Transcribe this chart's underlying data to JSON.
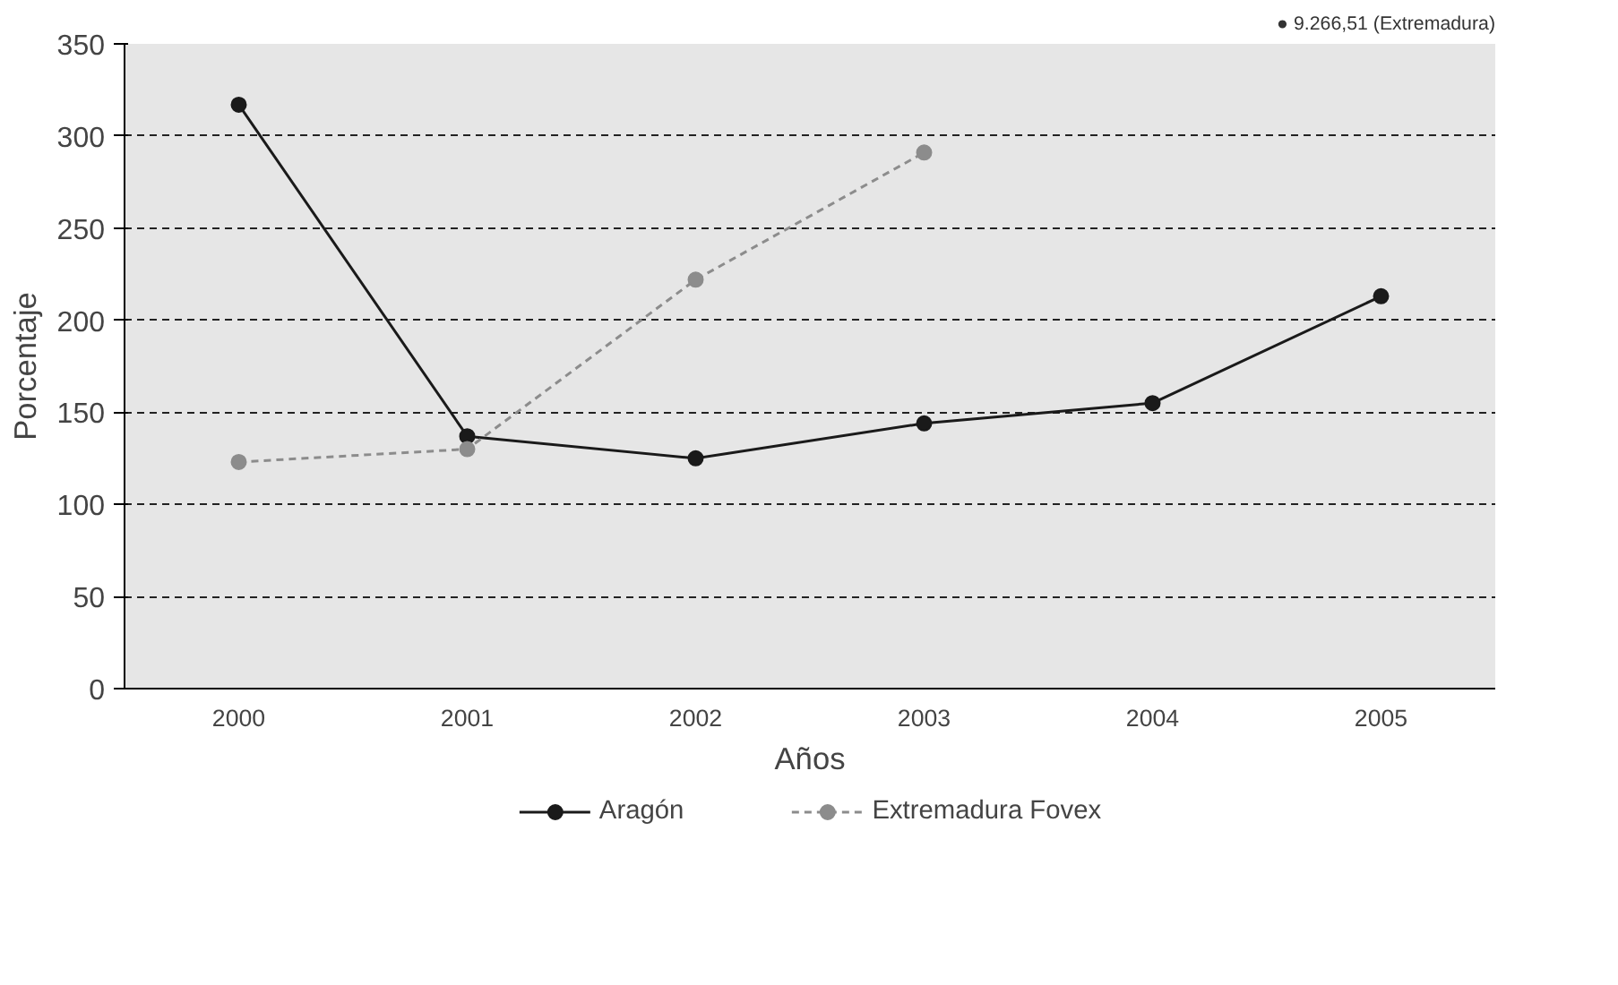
{
  "chart_data": {
    "type": "line",
    "xlabel": "Años",
    "ylabel": "Porcentaje",
    "categories": [
      "2000",
      "2001",
      "2002",
      "2003",
      "2004",
      "2005"
    ],
    "ylim": [
      0,
      350
    ],
    "yticks": [
      0,
      50,
      100,
      150,
      200,
      250,
      300,
      350
    ],
    "grid": "y",
    "legend": "bottom",
    "marker": "circle",
    "annotations": [
      "● 9.266,51 (Extremadura)"
    ],
    "series": [
      {
        "name": "Aragón",
        "color": "#1a1a1a",
        "line_style": "solid",
        "values": [
          317,
          137,
          125,
          144,
          155,
          213
        ]
      },
      {
        "name": "Extremadura Fovex",
        "color": "#8c8c8c",
        "line_style": "dashed",
        "values": [
          123,
          130,
          222,
          291,
          null,
          null
        ]
      }
    ]
  }
}
